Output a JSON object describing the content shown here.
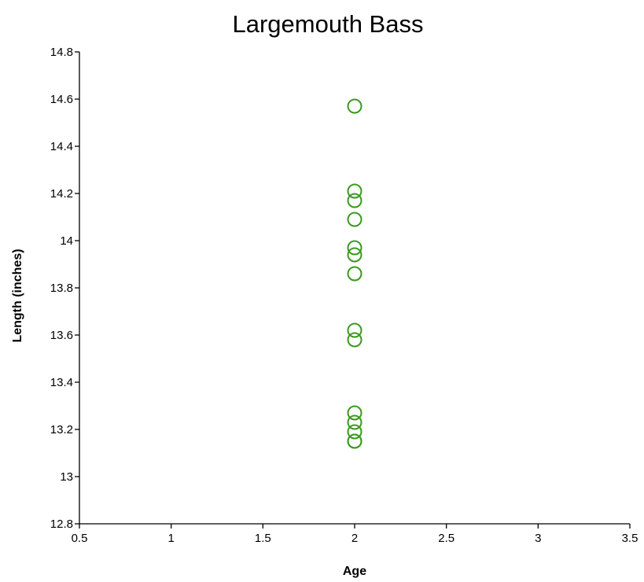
{
  "chart_data": {
    "type": "scatter",
    "title": "Largemouth Bass",
    "xlabel": "Age",
    "ylabel": "Length (inches)",
    "xlim": [
      0.5,
      3.5
    ],
    "ylim": [
      12.8,
      14.8
    ],
    "x_ticks": [
      0.5,
      1,
      1.5,
      2,
      2.5,
      3,
      3.5
    ],
    "x_tick_labels": [
      "0.5",
      "1",
      "1.5",
      "2",
      "2.5",
      "3",
      "3.5"
    ],
    "y_ticks": [
      12.8,
      13,
      13.2,
      13.4,
      13.6,
      13.8,
      14,
      14.2,
      14.4,
      14.6,
      14.8
    ],
    "y_tick_labels": [
      "12.8",
      "13",
      "13.2",
      "13.4",
      "13.6",
      "13.8",
      "14",
      "14.2",
      "14.4",
      "14.6",
      "14.8"
    ],
    "grid": false,
    "legend": "none",
    "marker": "open-circle",
    "color": "#3a9a1e",
    "series": [
      {
        "x": [
          2,
          2,
          2,
          2,
          2,
          2,
          2,
          2,
          2,
          2,
          2,
          2,
          2,
          2
        ],
        "y": [
          14.57,
          14.21,
          14.17,
          14.09,
          13.97,
          13.94,
          13.86,
          13.62,
          13.58,
          13.27,
          13.23,
          13.19,
          13.15,
          13.15
        ]
      }
    ]
  }
}
